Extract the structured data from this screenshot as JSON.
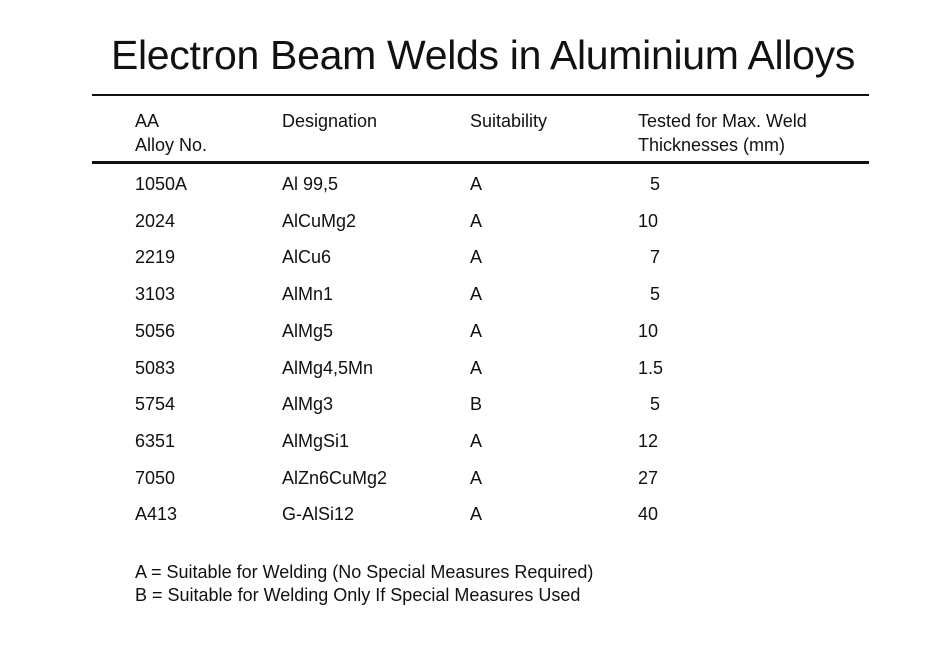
{
  "title": "Electron Beam Welds in Aluminium Alloys",
  "table": {
    "headers": [
      [
        "AA",
        "Alloy No."
      ],
      [
        "Designation"
      ],
      [
        "Suitability"
      ],
      [
        "Tested for Max. Weld",
        "Thicknesses (mm)"
      ]
    ],
    "rows": [
      [
        "1050A",
        "Al 99,5",
        "A",
        "5"
      ],
      [
        "2024",
        "AlCuMg2",
        "A",
        "10"
      ],
      [
        "2219",
        "AlCu6",
        "A",
        "7"
      ],
      [
        "3103",
        "AlMn1",
        "A",
        "5"
      ],
      [
        "5056",
        "AlMg5",
        "A",
        "10"
      ],
      [
        "5083",
        "AlMg4,5Mn",
        "A",
        "1.5"
      ],
      [
        "5754",
        "AlMg3",
        "B",
        "5"
      ],
      [
        "6351",
        "AlMgSi1",
        "A",
        "12"
      ],
      [
        "7050",
        "AlZn6CuMg2",
        "A",
        "27"
      ],
      [
        "A413",
        "G-AlSi12",
        "A",
        "40"
      ]
    ]
  },
  "legend": [
    "A = Suitable for Welding (No Special Measures Required)",
    "B = Suitable for Welding Only If Special Measures Used"
  ]
}
